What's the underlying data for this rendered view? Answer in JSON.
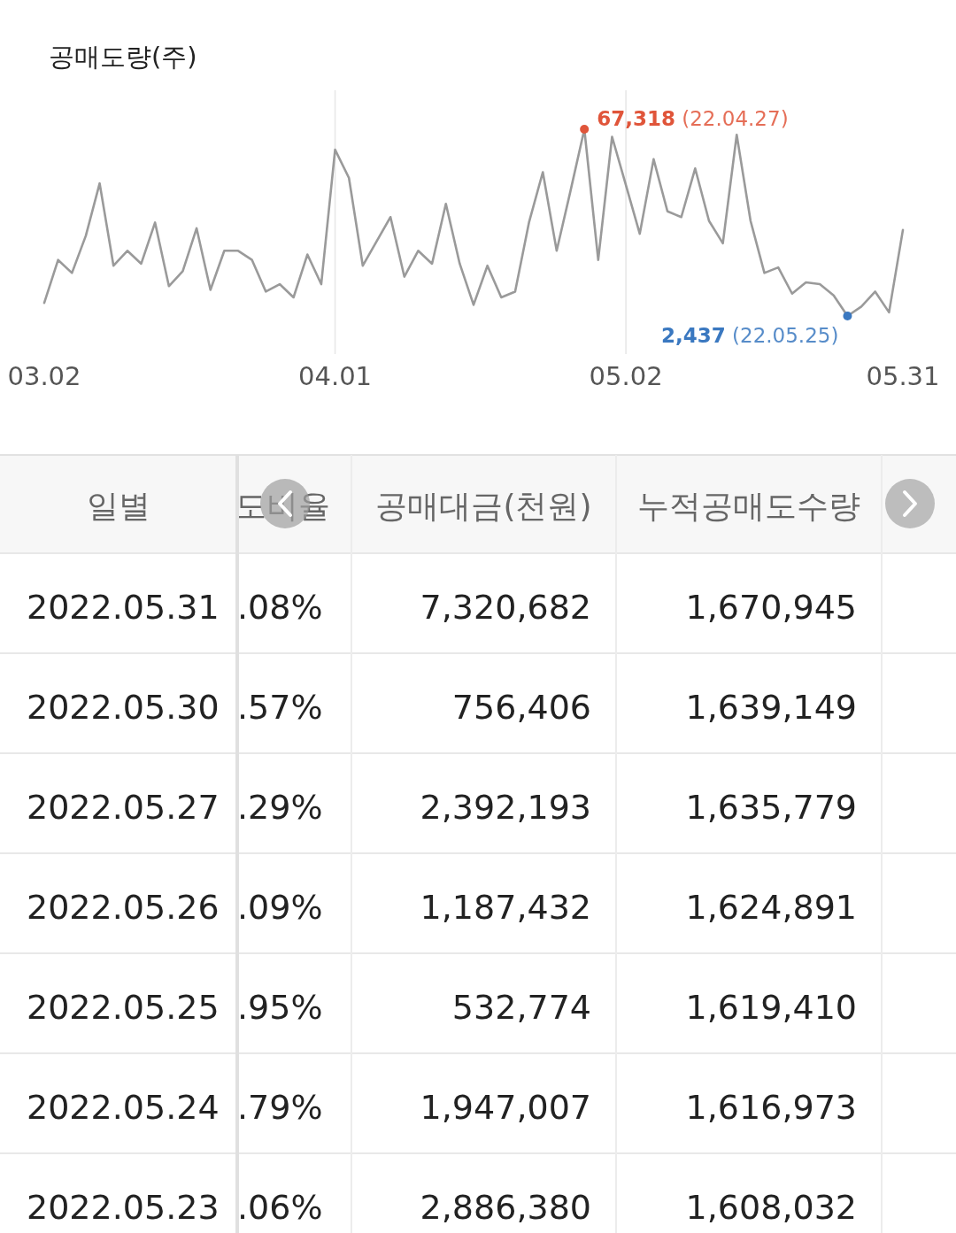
{
  "chart_data": [
    {
      "type": "line",
      "title": "공매도량(주)",
      "grid": "x",
      "marker": "none",
      "line_style": "solid",
      "categories": [
        "03.02",
        null,
        null,
        null,
        null,
        null,
        null,
        null,
        null,
        null,
        null,
        null,
        null,
        null,
        null,
        null,
        null,
        null,
        null,
        null,
        null,
        "04.01",
        null,
        null,
        null,
        null,
        null,
        null,
        null,
        null,
        null,
        null,
        null,
        null,
        null,
        null,
        null,
        null,
        null,
        null,
        null,
        null,
        "05.02",
        null,
        null,
        null,
        null,
        null,
        null,
        null,
        null,
        null,
        null,
        null,
        null,
        null,
        null,
        null,
        null,
        null,
        null,
        null,
        "05.31"
      ],
      "series": [
        {
          "color": "#9a9a9a",
          "values": [
            7000,
            21900,
            17400,
            30300,
            48500,
            19900,
            25100,
            20600,
            34900,
            12800,
            18000,
            32900,
            11500,
            25100,
            25100,
            21900,
            10900,
            13500,
            8900,
            23800,
            13500,
            60200,
            50400,
            19900,
            28400,
            36800,
            16100,
            25100,
            20600,
            41400,
            20600,
            6300,
            19900,
            8900,
            10900,
            34900,
            52400,
            25100,
            45900,
            67318,
            21900,
            64700,
            47900,
            31000,
            56900,
            38800,
            36800,
            53700,
            35500,
            27700,
            65400,
            35500,
            17400,
            19300,
            10200,
            14100,
            13500,
            9600,
            2437,
            5700,
            10900,
            3700,
            32300
          ],
          "colors": [
            null,
            null,
            null,
            null,
            null,
            null,
            null,
            null,
            null,
            null,
            null,
            null,
            null,
            null,
            null,
            null,
            null,
            null,
            null,
            null,
            null,
            null,
            null,
            null,
            null,
            null,
            null,
            null,
            null,
            null,
            null,
            null,
            null,
            null,
            null,
            null,
            null,
            null,
            null,
            "#e0553a",
            null,
            null,
            null,
            null,
            null,
            null,
            null,
            null,
            null,
            null,
            null,
            null,
            null,
            null,
            null,
            null,
            null,
            null,
            "#3a78c0",
            null,
            null,
            null,
            null
          ],
          "value_labels": [
            null,
            null,
            null,
            null,
            null,
            null,
            null,
            null,
            null,
            null,
            null,
            null,
            null,
            null,
            null,
            null,
            null,
            null,
            null,
            null,
            null,
            null,
            null,
            null,
            null,
            null,
            null,
            null,
            null,
            null,
            null,
            null,
            null,
            null,
            null,
            null,
            null,
            null,
            null,
            "67,318 (22.04.27)",
            null,
            null,
            null,
            null,
            null,
            null,
            null,
            null,
            null,
            null,
            null,
            null,
            null,
            null,
            null,
            null,
            null,
            null,
            "2,437 (22.05.25)",
            null,
            null,
            null,
            null
          ]
        }
      ]
    },
    {
      "type": "other",
      "categories": [
        "일별",
        "도비율",
        "공매대금(천원)",
        "누적공매도수량"
      ],
      "cell_labels": [
        [
          "2022.05.31",
          ".08%",
          "7,320,682",
          "1,670,945"
        ],
        [
          "2022.05.30",
          ".57%",
          "756,406",
          "1,639,149"
        ],
        [
          "2022.05.27",
          ".29%",
          "2,392,193",
          "1,635,779"
        ],
        [
          "2022.05.26",
          ".09%",
          "1,187,432",
          "1,624,891"
        ],
        [
          "2022.05.25",
          ".95%",
          "532,774",
          "1,619,410"
        ],
        [
          "2022.05.24",
          ".79%",
          "1,947,007",
          "1,616,973"
        ],
        [
          "2022.05.23",
          ".06%",
          "2,886,380",
          "1,608,032"
        ]
      ]
    }
  ]
}
